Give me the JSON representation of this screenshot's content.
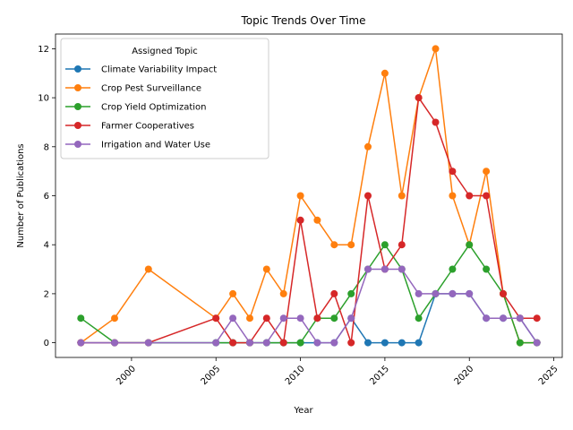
{
  "chart_data": {
    "type": "line",
    "title": "Topic Trends Over Time",
    "xlabel": "Year",
    "ylabel": "Number of Publications",
    "xlim": [
      1995.5,
      2025.5
    ],
    "ylim": [
      -0.6,
      12.6
    ],
    "xticks": [
      2000,
      2005,
      2010,
      2015,
      2020,
      2025
    ],
    "yticks": [
      0,
      2,
      4,
      6,
      8,
      10,
      12
    ],
    "grid": false,
    "legend": {
      "title": "Assigned Topic",
      "placement": "top-left"
    },
    "x": [
      1997,
      1999,
      2001,
      2005,
      2006,
      2007,
      2008,
      2009,
      2010,
      2011,
      2012,
      2013,
      2014,
      2015,
      2016,
      2017,
      2018,
      2019,
      2020,
      2021,
      2022,
      2023,
      2024
    ],
    "series": [
      {
        "name": "Climate Variability Impact",
        "color": "#1f77b4",
        "values": [
          0,
          0,
          0,
          0,
          0,
          0,
          0,
          0,
          0,
          0,
          0,
          1,
          0,
          0,
          0,
          0,
          2,
          2,
          2,
          1,
          1,
          1,
          0
        ]
      },
      {
        "name": "Crop Pest Surveillance",
        "color": "#ff7f0e",
        "values": [
          0,
          1,
          3,
          1,
          2,
          1,
          3,
          2,
          6,
          5,
          4,
          4,
          8,
          11,
          6,
          10,
          12,
          6,
          4,
          7,
          2,
          0,
          0
        ]
      },
      {
        "name": "Crop Yield Optimization",
        "color": "#2ca02c",
        "values": [
          1,
          0,
          0,
          0,
          0,
          0,
          0,
          0,
          0,
          1,
          1,
          2,
          3,
          4,
          3,
          1,
          2,
          3,
          4,
          3,
          2,
          0,
          0
        ]
      },
      {
        "name": "Farmer Cooperatives",
        "color": "#d62728",
        "values": [
          0,
          0,
          0,
          1,
          0,
          0,
          1,
          0,
          5,
          1,
          2,
          0,
          6,
          3,
          4,
          10,
          9,
          7,
          6,
          6,
          2,
          1,
          1
        ]
      },
      {
        "name": "Irrigation and Water Use",
        "color": "#9467bd",
        "values": [
          0,
          0,
          0,
          0,
          1,
          0,
          0,
          1,
          1,
          0,
          0,
          1,
          3,
          3,
          3,
          2,
          2,
          2,
          2,
          1,
          1,
          1,
          0
        ]
      }
    ]
  }
}
